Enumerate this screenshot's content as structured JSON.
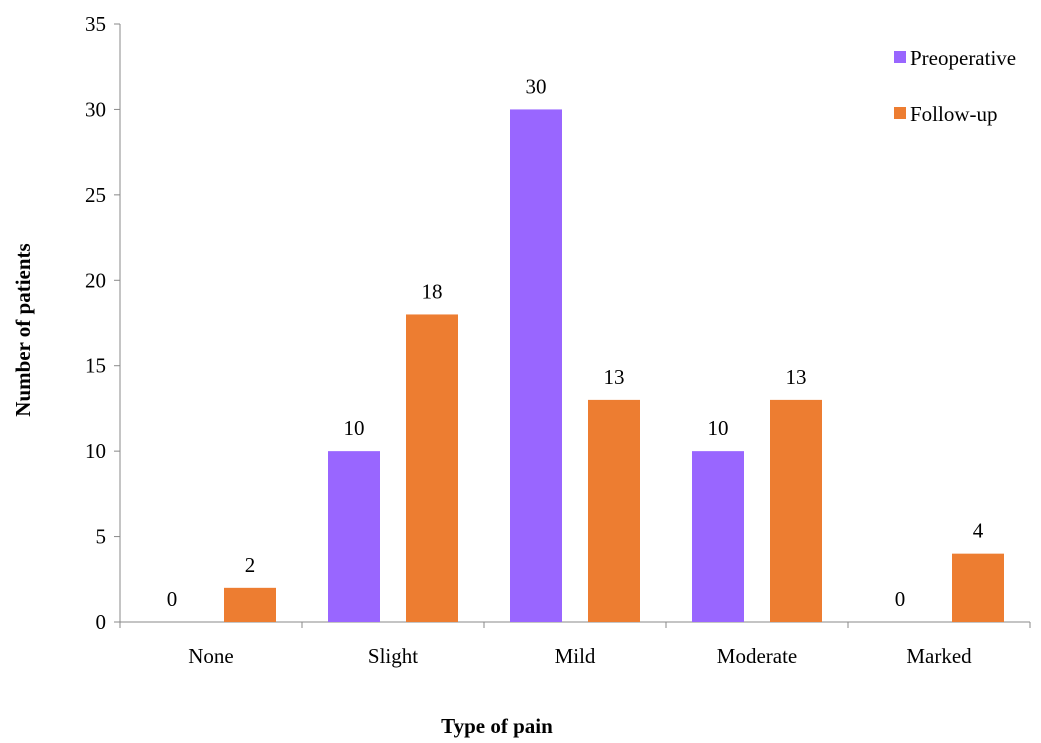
{
  "chart_data": {
    "type": "bar",
    "title": "",
    "xlabel": "Type of pain",
    "ylabel": "Number of patients",
    "categories": [
      "None",
      "Slight",
      "Mild",
      "Moderate",
      "Marked"
    ],
    "series": [
      {
        "name": "Preoperative",
        "values": [
          0,
          10,
          30,
          10,
          0
        ],
        "color": "#9966ff"
      },
      {
        "name": "Follow-up",
        "values": [
          2,
          18,
          13,
          13,
          4
        ],
        "color": "#ed7d31"
      }
    ],
    "ylim": [
      0,
      35
    ],
    "yticks": [
      0,
      5,
      10,
      15,
      20,
      25,
      30,
      35
    ],
    "grid": false,
    "legend": "top-right",
    "data_labels": true
  }
}
